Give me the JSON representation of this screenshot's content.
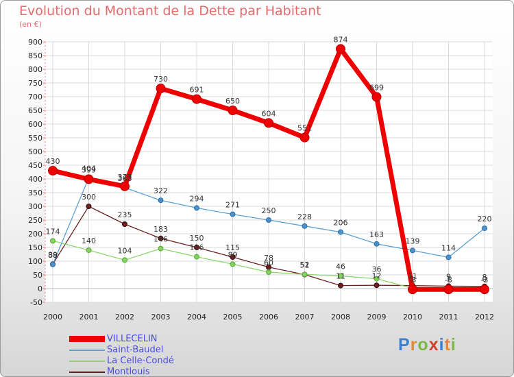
{
  "header": {
    "title": "Evolution du Montant de la Dette par Habitant",
    "unit": "(en €)"
  },
  "logo": {
    "text": "Proxiti",
    "colors": [
      "#3a7fd0",
      "#e8882a",
      "#7ab848",
      "#d0402a",
      "#3a7fd0",
      "#e8882a",
      "#7ab848"
    ]
  },
  "chart_data": {
    "type": "line",
    "title": "Evolution du Montant de la Dette par Habitant",
    "ylabel": "(en €)",
    "xlabel": "",
    "x": [
      "2000",
      "2001",
      "2002",
      "2003",
      "2004",
      "2005",
      "2006",
      "2007",
      "2008",
      "2009",
      "2010",
      "2011",
      "2012"
    ],
    "ylim": [
      -50,
      900
    ],
    "yticks": [
      -50,
      0,
      50,
      100,
      150,
      200,
      250,
      300,
      350,
      400,
      450,
      500,
      550,
      600,
      650,
      700,
      750,
      800,
      850,
      900
    ],
    "grid": true,
    "legend": "bottom-left",
    "series": [
      {
        "name": "VILLECELIN",
        "color": "#ee0000",
        "values": [
          430,
          399,
          373,
          730,
          691,
          650,
          604,
          551,
          874,
          699,
          -3,
          -3,
          -3
        ],
        "labels": [
          "430",
          "399",
          "373",
          "730",
          "691",
          "650",
          "604",
          "551",
          "874",
          "699",
          "-3",
          "-3",
          "-3"
        ]
      },
      {
        "name": "Saint-Baudel",
        "color": "#5b9fd4",
        "values": [
          88,
          404,
          368,
          322,
          294,
          271,
          250,
          228,
          206,
          163,
          139,
          114,
          220
        ],
        "labels": [
          "88",
          "404",
          "368",
          "322",
          "294",
          "271",
          "250",
          "228",
          "206",
          "163",
          "139",
          "114",
          "220"
        ]
      },
      {
        "name": "La Celle-Condé",
        "color": "#8ed66a",
        "values": [
          174,
          140,
          104,
          146,
          116,
          89,
          60,
          52,
          46,
          36,
          1,
          1,
          0
        ],
        "labels": [
          "174",
          "140",
          "104",
          "146",
          "116",
          "89",
          "60",
          "52",
          "46",
          "36",
          "1",
          "1",
          "0"
        ]
      },
      {
        "name": "Montlouis",
        "color": "#6b2020",
        "values": [
          89,
          300,
          235,
          183,
          150,
          115,
          78,
          51,
          11,
          12,
          11,
          9,
          8
        ],
        "labels": [
          "89",
          "300",
          "235",
          "183",
          "150",
          "115",
          "78",
          "51",
          "11",
          "12",
          "11",
          "9",
          "8"
        ]
      }
    ]
  }
}
